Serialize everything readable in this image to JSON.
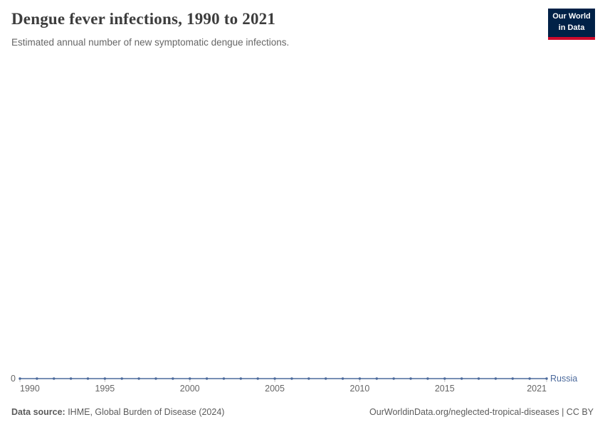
{
  "header": {
    "title": "Dengue fever infections, 1990 to 2021",
    "subtitle": "Estimated annual number of new symptomatic dengue infections."
  },
  "logo": {
    "line1": "Our World",
    "line2": "in Data"
  },
  "colors": {
    "logo_navy": "#002147",
    "logo_red": "#cf0a2c",
    "series_line": "#4c6a9c",
    "axis_text": "#666666"
  },
  "chart_data": {
    "type": "line",
    "title": "Dengue fever infections, 1990 to 2021",
    "xlabel": "",
    "ylabel": "",
    "x_range": [
      1990,
      2021
    ],
    "xticks": [
      1990,
      1995,
      2000,
      2005,
      2010,
      2015,
      2021
    ],
    "ylim": [
      0,
      0
    ],
    "y_zero_label": "0",
    "grid": false,
    "legend_position": "end-of-line-label",
    "series": [
      {
        "name": "Russia",
        "color": "#4c6a9c",
        "x": [
          1990,
          1991,
          1992,
          1993,
          1994,
          1995,
          1996,
          1997,
          1998,
          1999,
          2000,
          2001,
          2002,
          2003,
          2004,
          2005,
          2006,
          2007,
          2008,
          2009,
          2010,
          2011,
          2012,
          2013,
          2014,
          2015,
          2016,
          2017,
          2018,
          2019,
          2020,
          2021
        ],
        "values": [
          0,
          0,
          0,
          0,
          0,
          0,
          0,
          0,
          0,
          0,
          0,
          0,
          0,
          0,
          0,
          0,
          0,
          0,
          0,
          0,
          0,
          0,
          0,
          0,
          0,
          0,
          0,
          0,
          0,
          0,
          0,
          0
        ]
      }
    ]
  },
  "axis": {
    "zero_label": "0"
  },
  "entity_label": "Russia",
  "footer": {
    "source_label": "Data source:",
    "source_text": " IHME, Global Burden of Disease (2024)",
    "link_text": "OurWorldinData.org/neglected-tropical-diseases | CC BY"
  }
}
